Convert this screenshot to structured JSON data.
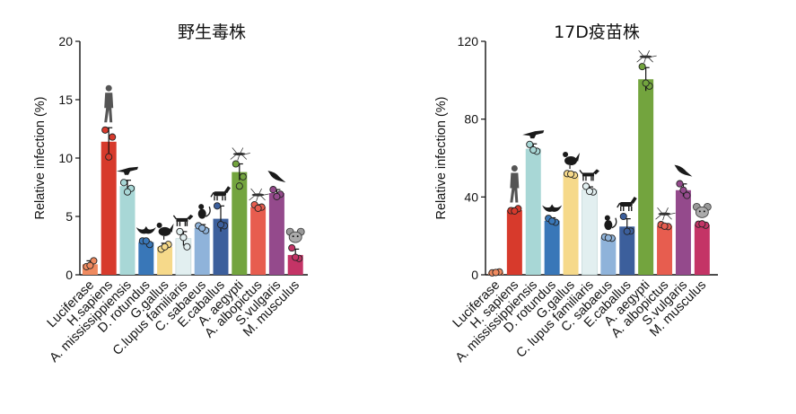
{
  "chart_data": [
    {
      "type": "bar",
      "title": "野生毒株",
      "ylabel": "Relative infection (%)",
      "xlabel": "",
      "ylim": [
        0,
        20
      ],
      "yticks": [
        0,
        5,
        10,
        15,
        20
      ],
      "categories": [
        "Luciferase",
        "H.sapiens",
        "A. mississippiensis",
        "D. rotundus",
        "G.gallus",
        "C.lupus familiaris",
        "C. sabaeus",
        "E.caballus",
        "A. aegypti",
        "A. albopictus",
        "S.vulgaris",
        "M. musculus"
      ],
      "values": [
        0.9,
        11.4,
        7.6,
        2.8,
        2.4,
        3.1,
        4.0,
        4.8,
        8.8,
        5.8,
        7.0,
        1.7
      ],
      "errors": [
        0.3,
        1.2,
        0.5,
        0.2,
        0.3,
        0.6,
        0.3,
        1.1,
        0.7,
        0.2,
        0.3,
        0.5
      ],
      "points": [
        [
          0.7,
          1.2,
          0.8
        ],
        [
          12.4,
          11.8,
          10.1
        ],
        [
          7.9,
          7.4,
          7.1
        ],
        [
          2.9,
          2.6,
          2.9
        ],
        [
          2.2,
          2.6,
          2.4
        ],
        [
          3.7,
          2.4,
          3.2
        ],
        [
          4.2,
          3.8,
          4.0
        ],
        [
          5.9,
          4.2,
          4.3
        ],
        [
          9.5,
          8.4,
          7.6
        ],
        [
          6.0,
          5.8,
          5.7
        ],
        [
          7.3,
          6.9,
          6.7
        ],
        [
          2.3,
          1.4,
          1.5
        ]
      ],
      "colors": [
        "#ef8a5f",
        "#d73a2c",
        "#a8d7d6",
        "#3977b8",
        "#f6d98a",
        "#e2eff0",
        "#8fb3da",
        "#3c5f9c",
        "#73a43e",
        "#e75d4f",
        "#944a8c",
        "#c43466"
      ],
      "icons": [
        "",
        "human",
        "alligator",
        "bat",
        "chicken",
        "dog",
        "monkey",
        "horse",
        "mosquito",
        "mosquito",
        "bird",
        "mouse"
      ]
    },
    {
      "type": "bar",
      "title": "17D疫苗株",
      "ylabel": "Relative infection (%)",
      "xlabel": "",
      "ylim": [
        0,
        120
      ],
      "yticks": [
        0,
        40,
        80,
        120
      ],
      "categories": [
        "Luciferase",
        "H. sapiens",
        "A. mississippiensis",
        "D. rotundus",
        "G.gallus",
        "C. lupus familiaris",
        "C. sabaeus",
        "E.caballus",
        "A. aegypti",
        "A. albopictus",
        "S.vulgaris",
        "M. musculus"
      ],
      "values": [
        1.2,
        33.2,
        64.8,
        27.8,
        51.6,
        43.6,
        19.2,
        24.8,
        100.5,
        25.2,
        43.5,
        25.8
      ],
      "errors": [
        0.6,
        1.2,
        2.5,
        1.5,
        1.0,
        1.6,
        0.8,
        4.0,
        6.0,
        1.0,
        3.2,
        0.8
      ],
      "points": [
        [
          1.0,
          1.5,
          1.2
        ],
        [
          33.0,
          34.0,
          32.8
        ],
        [
          67.0,
          63.5,
          64.2
        ],
        [
          29.0,
          27.0,
          27.6
        ],
        [
          52.0,
          51.2,
          51.8
        ],
        [
          45.5,
          42.6,
          42.9
        ],
        [
          19.5,
          18.8,
          19.0
        ],
        [
          30.0,
          22.5,
          22.3
        ],
        [
          107.0,
          97.0,
          98.5
        ],
        [
          25.8,
          24.8,
          25.0
        ],
        [
          46.8,
          40.8,
          43.5
        ],
        [
          26.0,
          25.5,
          26.2
        ]
      ],
      "colors": [
        "#ef8a5f",
        "#d73a2c",
        "#a8d7d6",
        "#3977b8",
        "#f6d98a",
        "#e2eff0",
        "#8fb3da",
        "#3c5f9c",
        "#73a43e",
        "#e75d4f",
        "#944a8c",
        "#c43466"
      ],
      "icons": [
        "",
        "human",
        "alligator",
        "bat",
        "chicken",
        "dog",
        "monkey",
        "horse",
        "mosquito",
        "mosquito",
        "bird",
        "mouse"
      ]
    }
  ]
}
